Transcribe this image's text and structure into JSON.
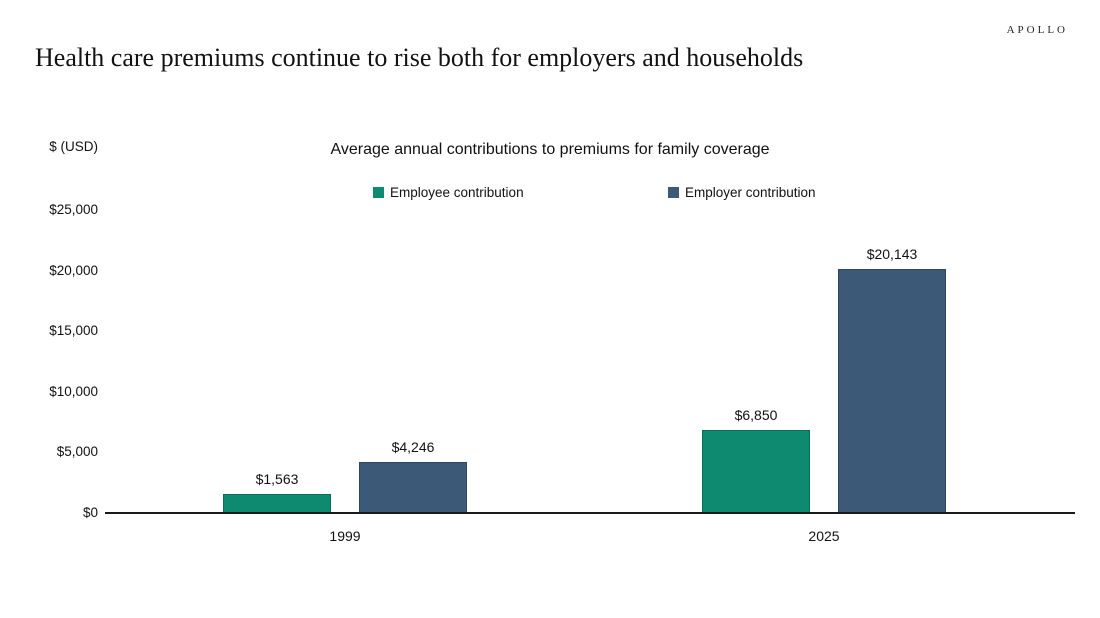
{
  "header": {
    "logo": "APOLLO",
    "title": "Health care premiums continue to rise both for employers and households"
  },
  "chart": {
    "title": "Average annual contributions to premiums for family coverage",
    "axis_unit_label": "$ (USD)",
    "y_tick_labels": [
      "$25,000",
      "$20,000",
      "$15,000",
      "$10,000",
      "$5,000",
      "$0"
    ]
  },
  "chart_data": {
    "type": "bar",
    "title": "Average annual contributions to premiums for family coverage",
    "categories": [
      "1999",
      "2025"
    ],
    "series": [
      {
        "name": "Employee contribution",
        "values": [
          1563,
          6850
        ],
        "value_labels": [
          "$1,563",
          "$6,850"
        ],
        "color": "#0d8a6f",
        "border_color": "#0a6e59"
      },
      {
        "name": "Employer contribution",
        "values": [
          4246,
          20143
        ],
        "value_labels": [
          "$4,246",
          "$20,143"
        ],
        "color": "#3c5a78",
        "border_color": "#2e4760"
      }
    ],
    "xlabel": "",
    "ylabel": "$ (USD)",
    "ylim": [
      0,
      25000
    ],
    "y_tick_step": 5000,
    "grid": false,
    "legend_position": "top",
    "data_labels": true
  }
}
